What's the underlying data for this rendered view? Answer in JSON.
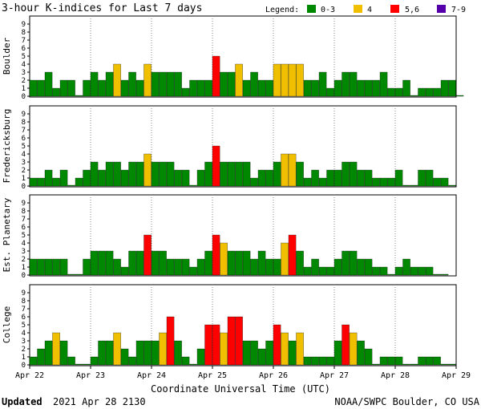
{
  "chart_data": {
    "type": "bar",
    "title": "3-hour K-indices for Last 7 days",
    "legend_label": "Legend:",
    "legend": [
      {
        "label": "0-3",
        "color": "#008800"
      },
      {
        "label": "4",
        "color": "#f0c000"
      },
      {
        "label": "5,6",
        "color": "#ff0000"
      },
      {
        "label": "7-9",
        "color": "#5500aa"
      }
    ],
    "xlabel": "Coordinate Universal Time (UTC)",
    "x_ticks": [
      "Apr 22",
      "Apr 23",
      "Apr 24",
      "Apr 25",
      "Apr 26",
      "Apr 27",
      "Apr 28",
      "Apr 29"
    ],
    "y_ticks": [
      "0",
      "1",
      "2",
      "3",
      "4",
      "5",
      "6",
      "7",
      "8",
      "9"
    ],
    "ylim": [
      0,
      9
    ],
    "bars_per_day": 8,
    "series": [
      {
        "name": "Boulder",
        "values": [
          2,
          2,
          3,
          1,
          2,
          2,
          0.1,
          2,
          3,
          2,
          3,
          4,
          2,
          3,
          2,
          4,
          3,
          3,
          3,
          3,
          1,
          2,
          2,
          2,
          5,
          3,
          3,
          4,
          2,
          3,
          2,
          2,
          4,
          4,
          4,
          4,
          2,
          2,
          3,
          1,
          2,
          3,
          3,
          2,
          2,
          2,
          3,
          1,
          1,
          2,
          0.1,
          1,
          1,
          1,
          2,
          2,
          0.1
        ]
      },
      {
        "name": "Fredericksburg",
        "values": [
          1,
          1,
          2,
          1,
          2,
          0.1,
          1,
          2,
          3,
          2,
          3,
          3,
          2,
          3,
          3,
          4,
          3,
          3,
          3,
          2,
          2,
          0.1,
          2,
          3,
          5,
          3,
          3,
          3,
          3,
          1,
          2,
          2,
          3,
          4,
          4,
          3,
          1,
          2,
          1,
          2,
          2,
          3,
          3,
          2,
          2,
          1,
          1,
          1,
          2,
          0.1,
          0.1,
          2,
          2,
          1,
          1,
          0.1
        ]
      },
      {
        "name": "Est. Planetary",
        "values": [
          2,
          2,
          2,
          2,
          2,
          0.1,
          0.1,
          2,
          3,
          3,
          3,
          2,
          1,
          3,
          3,
          5,
          3,
          3,
          2,
          2,
          2,
          1,
          2,
          3,
          5,
          4,
          3,
          3,
          3,
          2,
          3,
          2,
          2,
          4,
          5,
          3,
          1,
          2,
          1,
          1,
          2,
          3,
          3,
          2,
          2,
          1,
          1,
          0.1,
          1,
          2,
          1,
          1,
          1,
          0.1,
          0.1
        ]
      },
      {
        "name": "College",
        "values": [
          1,
          2,
          3,
          4,
          3,
          1,
          0.1,
          0.1,
          1,
          3,
          3,
          4,
          2,
          1,
          3,
          3,
          3,
          4,
          6,
          3,
          1,
          0.1,
          2,
          5,
          5,
          4,
          6,
          6,
          3,
          3,
          2,
          3,
          5,
          4,
          3,
          4,
          1,
          1,
          1,
          1,
          3,
          5,
          4,
          3,
          2,
          0.1,
          1,
          1,
          1,
          0.1,
          0.1,
          1,
          1,
          1,
          0.1,
          0.1
        ]
      }
    ]
  },
  "footer": {
    "updated_label": "Updated",
    "updated_value": "2021 Apr 28 2130",
    "source": "NOAA/SWPC Boulder, CO USA"
  }
}
